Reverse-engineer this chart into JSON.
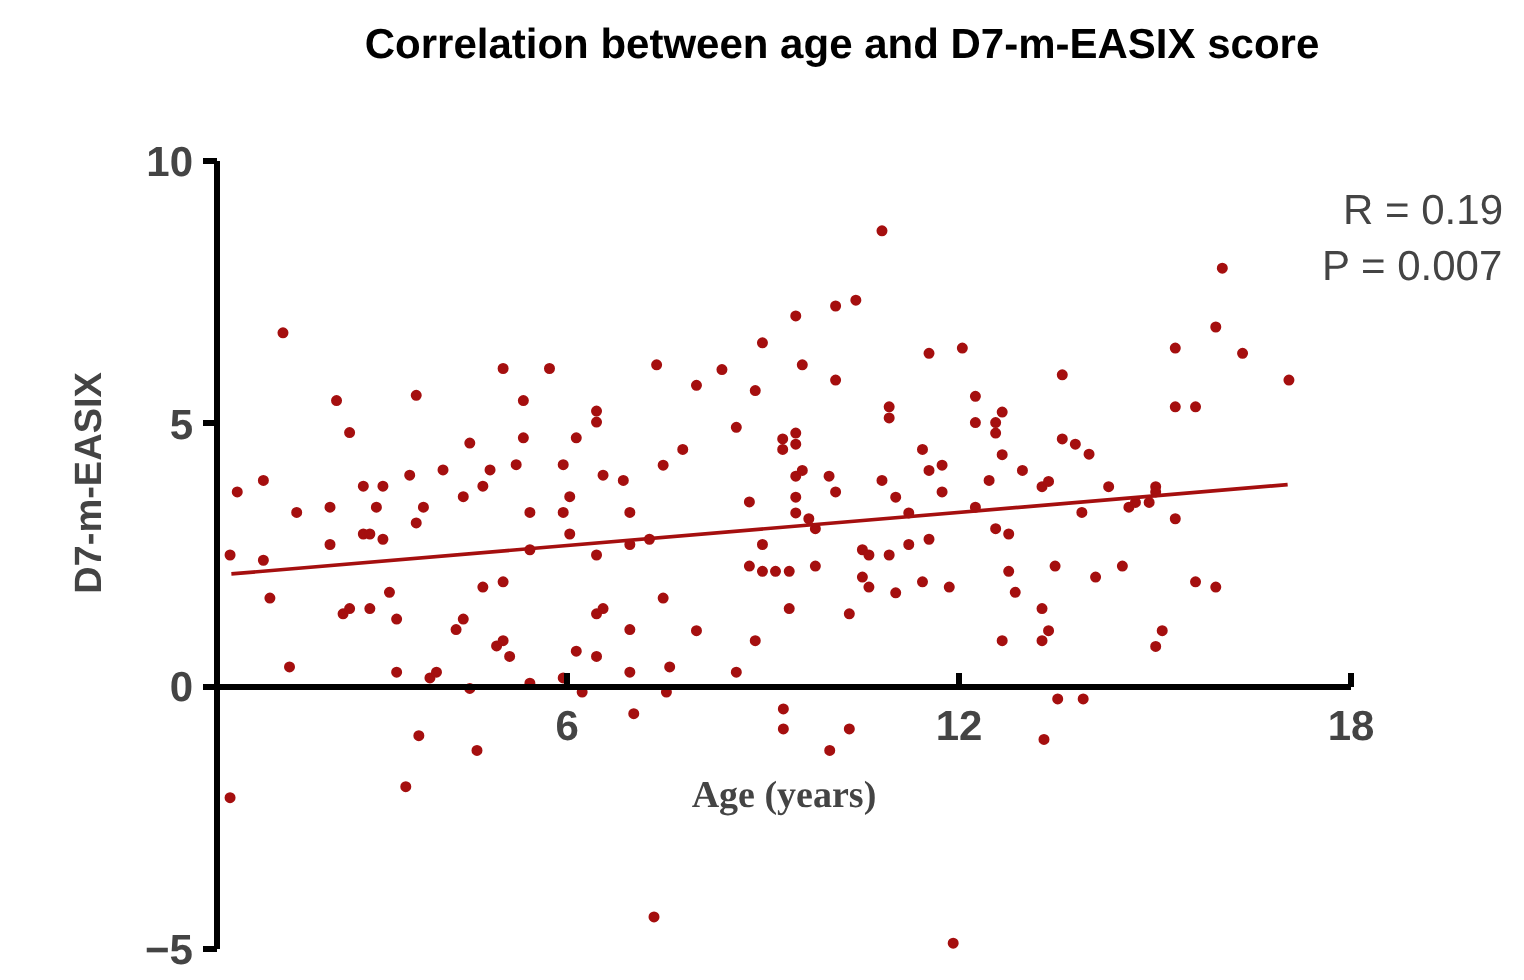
{
  "chart_data": {
    "type": "scatter",
    "title": "Correlation between age and D7-m-EASIX score",
    "xlabel": "Age (years)",
    "ylabel": "D7-m-EASIX",
    "annotations": [
      "R = 0.19",
      "P = 0.007"
    ],
    "xlim": [
      0.64,
      18
    ],
    "xticks": [
      6,
      12,
      18
    ],
    "ylim": [
      -5,
      10
    ],
    "yticks": [
      -5,
      0,
      5,
      10
    ],
    "series": [
      {
        "type": "scatter",
        "marker": "circle",
        "color": "#a50f0f",
        "x": [
          0.84,
          0.95,
          1.35,
          1.35,
          1.45,
          1.65,
          1.75,
          1.86,
          2.37,
          2.37,
          2.47,
          2.67,
          2.57,
          2.67,
          2.88,
          2.88,
          2.98,
          2.98,
          3.08,
          3.18,
          3.18,
          3.28,
          3.39,
          3.39,
          3.59,
          3.69,
          3.69,
          3.8,
          3.9,
          4.0,
          4.1,
          4.3,
          4.41,
          4.41,
          4.51,
          4.51,
          4.71,
          4.71,
          4.82,
          4.92,
          5.02,
          5.02,
          5.02,
          5.12,
          5.22,
          5.33,
          5.33,
          5.43,
          5.43,
          5.43,
          5.73,
          5.94,
          5.94,
          5.94,
          6.04,
          6.04,
          6.14,
          6.14,
          6.23,
          6.45,
          6.45,
          6.45,
          6.45,
          6.55,
          6.45,
          6.55,
          6.86,
          6.96,
          6.96,
          6.96,
          6.96,
          7.26,
          7.37,
          7.47,
          7.47,
          7.57,
          7.77,
          7.98,
          7.98,
          8.37,
          8.59,
          8.59,
          8.79,
          8.79,
          8.88,
          8.88,
          8.99,
          8.99,
          8.99,
          9.19,
          9.3,
          9.3,
          9.4,
          9.4,
          9.5,
          9.5,
          9.5,
          9.5,
          9.5,
          9.5,
          9.6,
          9.6,
          9.7,
          9.8,
          9.8,
          10.01,
          10.11,
          10.11,
          10.11,
          10.32,
          10.42,
          10.52,
          10.52,
          10.62,
          10.62,
          10.82,
          10.82,
          10.93,
          10.93,
          10.93,
          11.03,
          11.03,
          11.23,
          11.23,
          11.44,
          11.44,
          11.54,
          11.54,
          11.54,
          11.74,
          11.74,
          11.85,
          12.05,
          12.25,
          12.25,
          12.25,
          12.46,
          12.56,
          12.56,
          12.66,
          12.66,
          12.56,
          12.66,
          12.76,
          12.76,
          12.86,
          12.97,
          0.84,
          3.53,
          3.73,
          4.62,
          7.02,
          7.33,
          7.52,
          9.31,
          9.31,
          10.02,
          10.32,
          11.91,
          13.3,
          13.51,
          13.9,
          13.27,
          13.37,
          13.27,
          13.37,
          13.27,
          13.47,
          13.58,
          13.58,
          13.78,
          13.88,
          13.99,
          14.09,
          14.29,
          14.5,
          14.6,
          14.7,
          14.91,
          15.01,
          15.01,
          15.01,
          15.11,
          15.31,
          15.31,
          15.31,
          15.62,
          15.62,
          15.93,
          15.93,
          16.03,
          16.34,
          17.05
        ],
        "values": [
          2.5,
          3.7,
          3.92,
          2.4,
          1.68,
          6.73,
          0.37,
          3.31,
          3.41,
          2.7,
          5.44,
          4.83,
          1.38,
          1.48,
          3.81,
          2.9,
          2.9,
          1.48,
          3.41,
          3.81,
          2.8,
          1.79,
          1.28,
          0.27,
          4.02,
          5.54,
          3.11,
          3.41,
          0.16,
          0.27,
          4.12,
          1.08,
          1.28,
          3.61,
          4.63,
          -0.04,
          3.81,
          1.89,
          4.12,
          0.77,
          0.87,
          1.99,
          6.05,
          0.57,
          4.22,
          5.44,
          4.73,
          3.31,
          2.6,
          0.06,
          6.05,
          4.22,
          3.31,
          0.16,
          3.61,
          2.9,
          4.73,
          0.67,
          -0.11,
          5.24,
          5.03,
          2.5,
          1.38,
          1.48,
          0.57,
          4.02,
          3.92,
          3.31,
          2.7,
          1.08,
          0.27,
          2.8,
          6.12,
          4.21,
          1.68,
          0.37,
          4.51,
          5.73,
          1.06,
          6.03,
          4.93,
          0.27,
          3.51,
          2.29,
          5.63,
          0.87,
          6.54,
          2.7,
          2.19,
          2.19,
          4.71,
          4.51,
          2.19,
          1.48,
          7.05,
          4.82,
          4.61,
          4.0,
          3.6,
          3.3,
          6.12,
          4.11,
          3.19,
          3.0,
          2.29,
          4.0,
          7.24,
          5.83,
          3.7,
          1.38,
          7.35,
          2.6,
          2.08,
          2.5,
          1.89,
          8.67,
          3.92,
          5.32,
          5.11,
          2.5,
          3.6,
          1.78,
          3.3,
          2.7,
          4.51,
          1.99,
          6.34,
          4.11,
          2.8,
          4.21,
          3.7,
          1.89,
          6.44,
          5.52,
          5.02,
          3.41,
          3.92,
          5.02,
          4.82,
          5.22,
          4.41,
          3.0,
          0.87,
          2.9,
          2.19,
          1.79,
          4.11,
          -2.12,
          -1.91,
          -0.94,
          -1.22,
          -0.52,
          -4.39,
          -0.11,
          -0.43,
          -0.81,
          -1.22,
          -0.81,
          -4.89,
          -1.01,
          -0.24,
          -0.24,
          3.8,
          3.9,
          1.48,
          1.06,
          0.87,
          2.29,
          5.93,
          4.71,
          4.61,
          3.31,
          4.42,
          2.08,
          3.8,
          2.29,
          3.41,
          3.5,
          3.5,
          3.8,
          3.7,
          0.76,
          1.06,
          6.44,
          5.32,
          3.19,
          5.32,
          1.99,
          6.84,
          1.89,
          7.96,
          6.34,
          5.83
        ]
      },
      {
        "type": "line",
        "color": "#a50f0f",
        "x": [
          0.86,
          17.03
        ],
        "values": [
          2.14,
          3.84
        ]
      }
    ]
  }
}
